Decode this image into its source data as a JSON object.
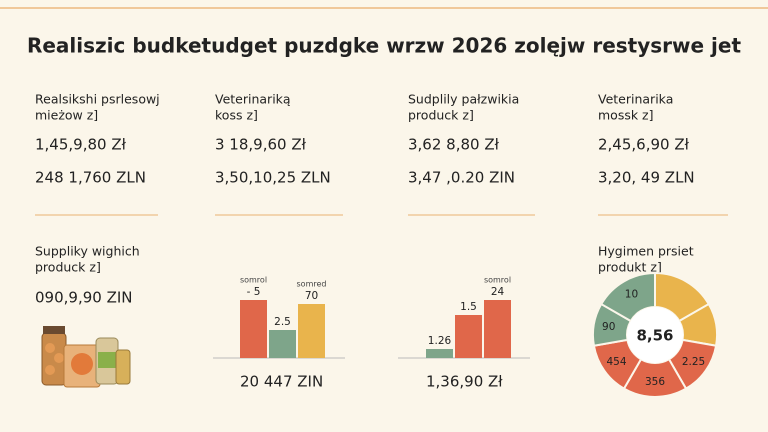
{
  "title": "Realiszic budketudget puzdgke wrzw 2026 zolęjw restysrwe jet",
  "top_cards": [
    {
      "label": [
        "Realsikshi psrlesowj",
        "mieżow z]"
      ],
      "values": [
        "1,45,9,80 Zł",
        "248 1,760 ZLN"
      ]
    },
    {
      "label": [
        "Veterinariką",
        "koss z]"
      ],
      "values": [
        "3 18,9,60 Zł",
        "3,50,10,25 ZLN"
      ]
    },
    {
      "label": [
        "Sudplily pałzwikia",
        "produck z]"
      ],
      "values": [
        "3,62 8,80 Zł",
        "3,47 ,0.20 ZIN"
      ]
    },
    {
      "label": [
        "Veterinarika",
        "mossk z]"
      ],
      "values": [
        "2,45,6,90 Zł",
        "3,20, 49 ZLN"
      ]
    }
  ],
  "supplies": {
    "label": [
      "Suppliky wighich",
      "produck z]"
    ],
    "value": "090,9,90 ZIN"
  },
  "chart_a": {
    "bars": [
      {
        "caption": "somrol",
        "label": "- 5",
        "value": 58,
        "color": "#e0674a"
      },
      {
        "caption": null,
        "label": "2.5",
        "value": 28,
        "color": "#7ea58a"
      },
      {
        "caption": "somred",
        "label": "70",
        "value": 54,
        "color": "#e9b44c"
      }
    ],
    "total": "20 447 ZIN"
  },
  "chart_b": {
    "bars": [
      {
        "caption": null,
        "label": "1.26",
        "value": 9,
        "color": "#7ea58a"
      },
      {
        "caption": null,
        "label": "1.5",
        "value": 43,
        "color": "#e0674a"
      },
      {
        "caption": "somrol",
        "label": "24",
        "value": 58,
        "color": "#e0674a"
      }
    ],
    "total": "1,36,90 Zł"
  },
  "donut": {
    "label": [
      "Hygimen prsiet",
      "produkt z]"
    ],
    "center": "8,56",
    "segments": [
      {
        "label": null,
        "value": 16.7,
        "color": "#e9b44c"
      },
      {
        "label": null,
        "value": 11.1,
        "color": "#e9b44c"
      },
      {
        "label": "2.25",
        "value": 13.9,
        "color": "#e0674a"
      },
      {
        "label": "356",
        "value": 16.7,
        "color": "#e0674a"
      },
      {
        "label": "454",
        "value": 13.9,
        "color": "#e0674a"
      },
      {
        "label": "90",
        "value": 11.1,
        "color": "#7ea58a"
      },
      {
        "label": "10",
        "value": 16.7,
        "color": "#7ea58a"
      }
    ]
  }
}
